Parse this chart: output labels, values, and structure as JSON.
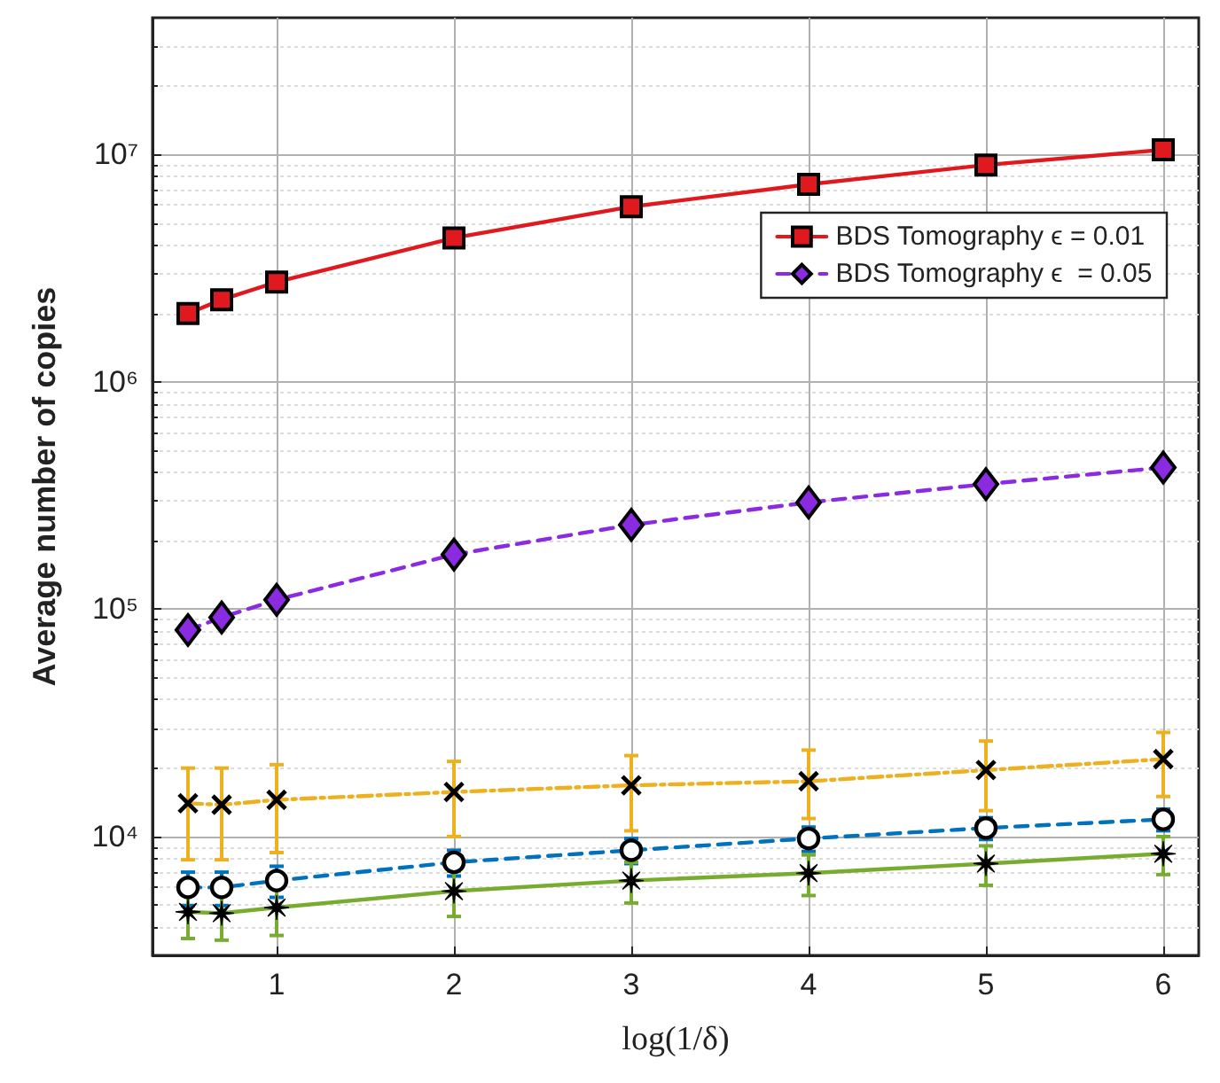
{
  "chart_data": {
    "type": "line",
    "xlabel": "log(1/δ)",
    "ylabel": "Average number of copies",
    "x": [
      0.5,
      0.69,
      1,
      2,
      3,
      4,
      5,
      6
    ],
    "series": [
      {
        "color": "#edb120",
        "marker": "cross",
        "line_style": "dashdot",
        "values": [
          14000,
          13800,
          14500,
          15700,
          16800,
          17500,
          19600,
          21900
        ],
        "errors": [
          [
            7900,
            20000
          ],
          [
            7900,
            20000
          ],
          [
            8500,
            20700
          ],
          [
            10000,
            21400
          ],
          [
            10600,
            22700
          ],
          [
            12000,
            24000
          ],
          [
            13000,
            26300
          ],
          [
            15000,
            28700
          ]
        ]
      },
      {
        "color": "#0072bd",
        "marker": "circle",
        "line_style": "dashed",
        "values": [
          5970,
          5970,
          6400,
          7700,
          8700,
          9800,
          10900,
          11900
        ],
        "errors": [
          1000,
          1000,
          1000,
          1000,
          1100,
          1200,
          1200,
          1300
        ]
      },
      {
        "color": "#77ac30",
        "marker": "star",
        "line_style": "solid",
        "values": [
          4660,
          4600,
          4870,
          5750,
          6400,
          6900,
          7600,
          8400
        ],
        "errors": [
          1100,
          1100,
          1200,
          1300,
          1300,
          1400,
          1500,
          1600
        ]
      },
      {
        "name": "BDS Tomography ϵ = 0.01",
        "color": "#e0191e",
        "marker": "square",
        "line_style": "solid",
        "values": [
          2000000,
          2300000,
          2750000,
          4300000,
          5900000,
          7400000,
          9000000,
          10500000
        ]
      },
      {
        "name": "BDS Tomography ϵ  = 0.05",
        "color": "#8a2be2",
        "marker": "diamond",
        "line_style": "dashed",
        "values": [
          81000,
          92000,
          110000,
          174000,
          235000,
          295000,
          355000,
          420000
        ]
      }
    ],
    "xlim": [
      0.3,
      6.2
    ],
    "xticks": [
      1,
      2,
      3,
      4,
      5,
      6
    ],
    "ylim": [
      3000,
      40000000
    ],
    "yticks": [
      {
        "value": 10000,
        "label": "10⁴"
      },
      {
        "value": 100000,
        "label": "10⁵"
      },
      {
        "value": 1000000,
        "label": "10⁶"
      },
      {
        "value": 10000000,
        "label": "10⁷"
      }
    ],
    "log": "y",
    "grid": true,
    "legend": "top right"
  }
}
